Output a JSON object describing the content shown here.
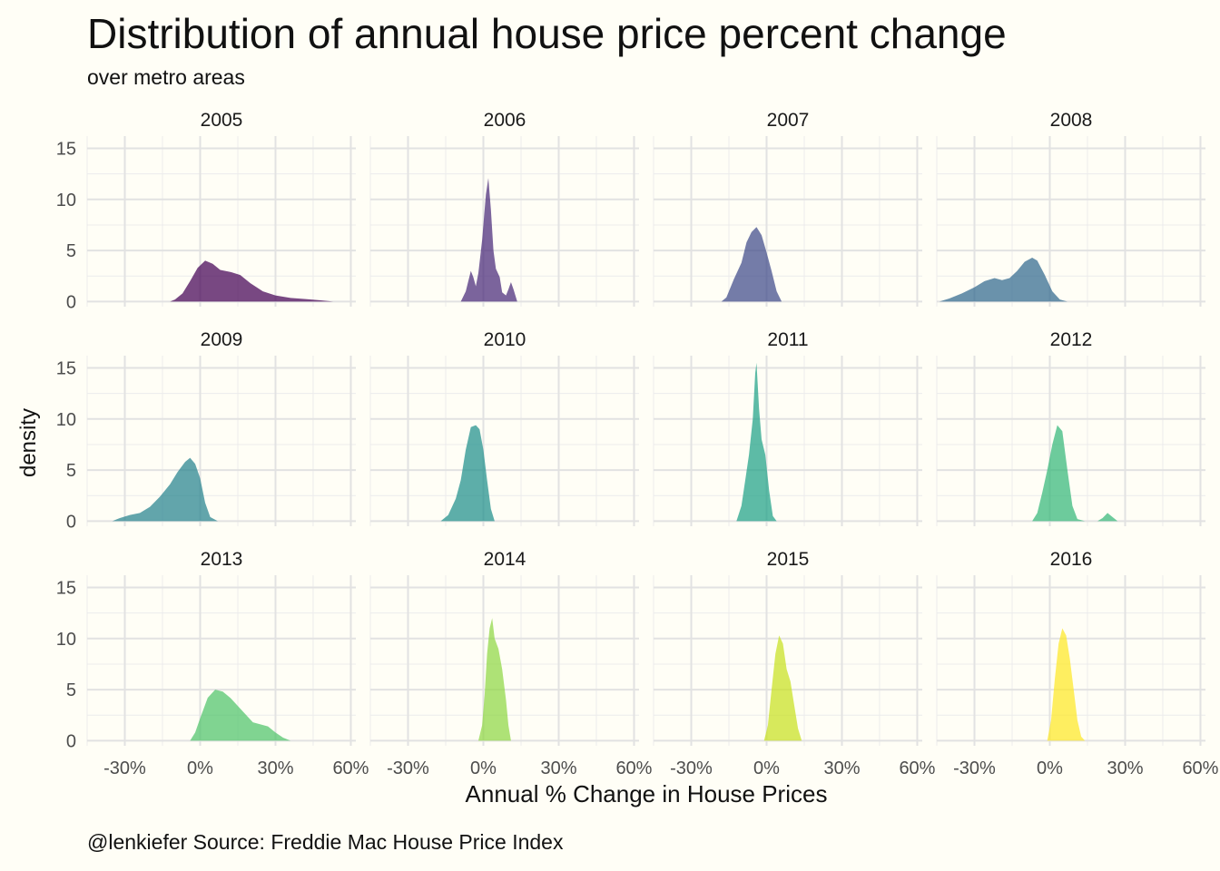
{
  "chart_data": {
    "type": "area",
    "title": "Distribution of annual house price percent change",
    "subtitle": "over metro areas",
    "xlabel": "Annual % Change in House Prices",
    "ylabel": "density",
    "caption": "@lenkiefer Source: Freddie Mac House Price Index",
    "xlim": [
      -0.45,
      0.62
    ],
    "ylim": [
      -0.5,
      16.2
    ],
    "x_ticks": [
      -0.3,
      0,
      0.3,
      0.6
    ],
    "x_tick_labels": [
      "-30%",
      "0%",
      "30%",
      "60%"
    ],
    "y_ticks": [
      0,
      5,
      10,
      15
    ],
    "y_tick_labels": [
      "0",
      "5",
      "10",
      "15"
    ],
    "grid": true,
    "legend": "none",
    "panels": [
      {
        "name": "2005",
        "color": "#440154",
        "points": [
          [
            -0.12,
            0
          ],
          [
            -0.1,
            0.2
          ],
          [
            -0.07,
            0.8
          ],
          [
            -0.04,
            2.0
          ],
          [
            -0.01,
            3.3
          ],
          [
            0.02,
            4.0
          ],
          [
            0.05,
            3.7
          ],
          [
            0.08,
            3.1
          ],
          [
            0.12,
            2.9
          ],
          [
            0.16,
            2.6
          ],
          [
            0.2,
            1.8
          ],
          [
            0.25,
            1.0
          ],
          [
            0.3,
            0.6
          ],
          [
            0.36,
            0.35
          ],
          [
            0.42,
            0.25
          ],
          [
            0.48,
            0.12
          ],
          [
            0.53,
            0
          ]
        ]
      },
      {
        "name": "2006",
        "color": "#482878",
        "points": [
          [
            -0.09,
            0
          ],
          [
            -0.07,
            1.0
          ],
          [
            -0.05,
            3.0
          ],
          [
            -0.04,
            2.4
          ],
          [
            -0.03,
            1.5
          ],
          [
            -0.02,
            2.8
          ],
          [
            -0.005,
            6.0
          ],
          [
            0.01,
            10.5
          ],
          [
            0.02,
            12.1
          ],
          [
            0.03,
            9.0
          ],
          [
            0.04,
            5.0
          ],
          [
            0.05,
            3.2
          ],
          [
            0.065,
            2.4
          ],
          [
            0.075,
            0.9
          ],
          [
            0.09,
            0.6
          ],
          [
            0.1,
            1.2
          ],
          [
            0.11,
            1.9
          ],
          [
            0.12,
            1.2
          ],
          [
            0.135,
            0
          ]
        ]
      },
      {
        "name": "2007",
        "color": "#3e4a89",
        "points": [
          [
            -0.18,
            0
          ],
          [
            -0.16,
            0.4
          ],
          [
            -0.13,
            2.2
          ],
          [
            -0.1,
            3.8
          ],
          [
            -0.08,
            5.8
          ],
          [
            -0.06,
            6.8
          ],
          [
            -0.04,
            7.3
          ],
          [
            -0.02,
            6.5
          ],
          [
            0.0,
            4.8
          ],
          [
            0.02,
            3.0
          ],
          [
            0.04,
            1.0
          ],
          [
            0.06,
            0
          ],
          [
            0.075,
            0
          ]
        ]
      },
      {
        "name": "2008",
        "color": "#31688e",
        "points": [
          [
            -0.44,
            0
          ],
          [
            -0.4,
            0.3
          ],
          [
            -0.35,
            0.8
          ],
          [
            -0.3,
            1.4
          ],
          [
            -0.26,
            2.0
          ],
          [
            -0.22,
            2.3
          ],
          [
            -0.19,
            2.1
          ],
          [
            -0.16,
            2.3
          ],
          [
            -0.13,
            3.0
          ],
          [
            -0.1,
            3.9
          ],
          [
            -0.07,
            4.3
          ],
          [
            -0.05,
            4.0
          ],
          [
            -0.02,
            2.6
          ],
          [
            0.01,
            1.0
          ],
          [
            0.04,
            0.2
          ],
          [
            0.07,
            0
          ]
        ]
      },
      {
        "name": "2009",
        "color": "#26828e",
        "points": [
          [
            -0.35,
            0
          ],
          [
            -0.32,
            0.3
          ],
          [
            -0.28,
            0.6
          ],
          [
            -0.24,
            0.8
          ],
          [
            -0.2,
            1.4
          ],
          [
            -0.16,
            2.4
          ],
          [
            -0.12,
            3.6
          ],
          [
            -0.09,
            4.8
          ],
          [
            -0.06,
            5.8
          ],
          [
            -0.04,
            6.2
          ],
          [
            -0.02,
            5.6
          ],
          [
            0.0,
            4.2
          ],
          [
            0.02,
            1.8
          ],
          [
            0.04,
            0.4
          ],
          [
            0.07,
            0
          ]
        ]
      },
      {
        "name": "2010",
        "color": "#1f8f8b",
        "points": [
          [
            -0.17,
            0
          ],
          [
            -0.14,
            0.6
          ],
          [
            -0.11,
            2.2
          ],
          [
            -0.09,
            4.0
          ],
          [
            -0.07,
            7.0
          ],
          [
            -0.05,
            9.2
          ],
          [
            -0.03,
            9.4
          ],
          [
            -0.015,
            9.0
          ],
          [
            0.0,
            7.0
          ],
          [
            0.015,
            4.0
          ],
          [
            0.03,
            1.2
          ],
          [
            0.045,
            0
          ]
        ]
      },
      {
        "name": "2011",
        "color": "#1fa187",
        "points": [
          [
            -0.12,
            0
          ],
          [
            -0.1,
            1.5
          ],
          [
            -0.085,
            4.0
          ],
          [
            -0.07,
            6.5
          ],
          [
            -0.055,
            10.0
          ],
          [
            -0.045,
            14.5
          ],
          [
            -0.04,
            15.5
          ],
          [
            -0.03,
            11.0
          ],
          [
            -0.02,
            8.0
          ],
          [
            -0.005,
            6.5
          ],
          [
            0.01,
            3.0
          ],
          [
            0.025,
            0.5
          ],
          [
            0.04,
            0
          ]
        ]
      },
      {
        "name": "2012",
        "color": "#35b779",
        "points": [
          [
            -0.07,
            0
          ],
          [
            -0.05,
            0.8
          ],
          [
            -0.03,
            2.8
          ],
          [
            -0.01,
            5.0
          ],
          [
            0.01,
            7.5
          ],
          [
            0.03,
            9.4
          ],
          [
            0.05,
            8.8
          ],
          [
            0.07,
            5.0
          ],
          [
            0.09,
            1.5
          ],
          [
            0.11,
            0.2
          ],
          [
            0.14,
            0
          ],
          [
            0.19,
            0
          ],
          [
            0.21,
            0.3
          ],
          [
            0.23,
            0.8
          ],
          [
            0.25,
            0.4
          ],
          [
            0.27,
            0
          ]
        ]
      },
      {
        "name": "2013",
        "color": "#4fc46a",
        "points": [
          [
            -0.04,
            0
          ],
          [
            -0.02,
            0.8
          ],
          [
            0.0,
            2.2
          ],
          [
            0.03,
            4.2
          ],
          [
            0.06,
            5.0
          ],
          [
            0.09,
            4.8
          ],
          [
            0.12,
            4.2
          ],
          [
            0.15,
            3.4
          ],
          [
            0.18,
            2.6
          ],
          [
            0.21,
            1.8
          ],
          [
            0.24,
            1.6
          ],
          [
            0.27,
            1.4
          ],
          [
            0.3,
            0.8
          ],
          [
            0.33,
            0.3
          ],
          [
            0.36,
            0
          ]
        ]
      },
      {
        "name": "2014",
        "color": "#8fd744",
        "points": [
          [
            -0.02,
            0
          ],
          [
            -0.005,
            1.5
          ],
          [
            0.005,
            4.5
          ],
          [
            0.015,
            8.5
          ],
          [
            0.025,
            11.0
          ],
          [
            0.035,
            12.0
          ],
          [
            0.045,
            10.0
          ],
          [
            0.06,
            9.0
          ],
          [
            0.075,
            7.0
          ],
          [
            0.09,
            4.0
          ],
          [
            0.1,
            1.5
          ],
          [
            0.11,
            0
          ]
        ]
      },
      {
        "name": "2015",
        "color": "#c8e020",
        "points": [
          [
            -0.01,
            0
          ],
          [
            0.005,
            1.5
          ],
          [
            0.02,
            5.0
          ],
          [
            0.035,
            8.5
          ],
          [
            0.05,
            10.3
          ],
          [
            0.065,
            9.5
          ],
          [
            0.08,
            7.0
          ],
          [
            0.095,
            5.8
          ],
          [
            0.11,
            3.5
          ],
          [
            0.125,
            1.2
          ],
          [
            0.14,
            0
          ]
        ]
      },
      {
        "name": "2016",
        "color": "#fde725",
        "points": [
          [
            -0.01,
            0
          ],
          [
            0.005,
            2.0
          ],
          [
            0.02,
            6.0
          ],
          [
            0.035,
            9.5
          ],
          [
            0.05,
            11.0
          ],
          [
            0.065,
            10.3
          ],
          [
            0.08,
            8.0
          ],
          [
            0.095,
            5.0
          ],
          [
            0.11,
            2.0
          ],
          [
            0.125,
            0.4
          ],
          [
            0.14,
            0
          ]
        ]
      }
    ]
  }
}
